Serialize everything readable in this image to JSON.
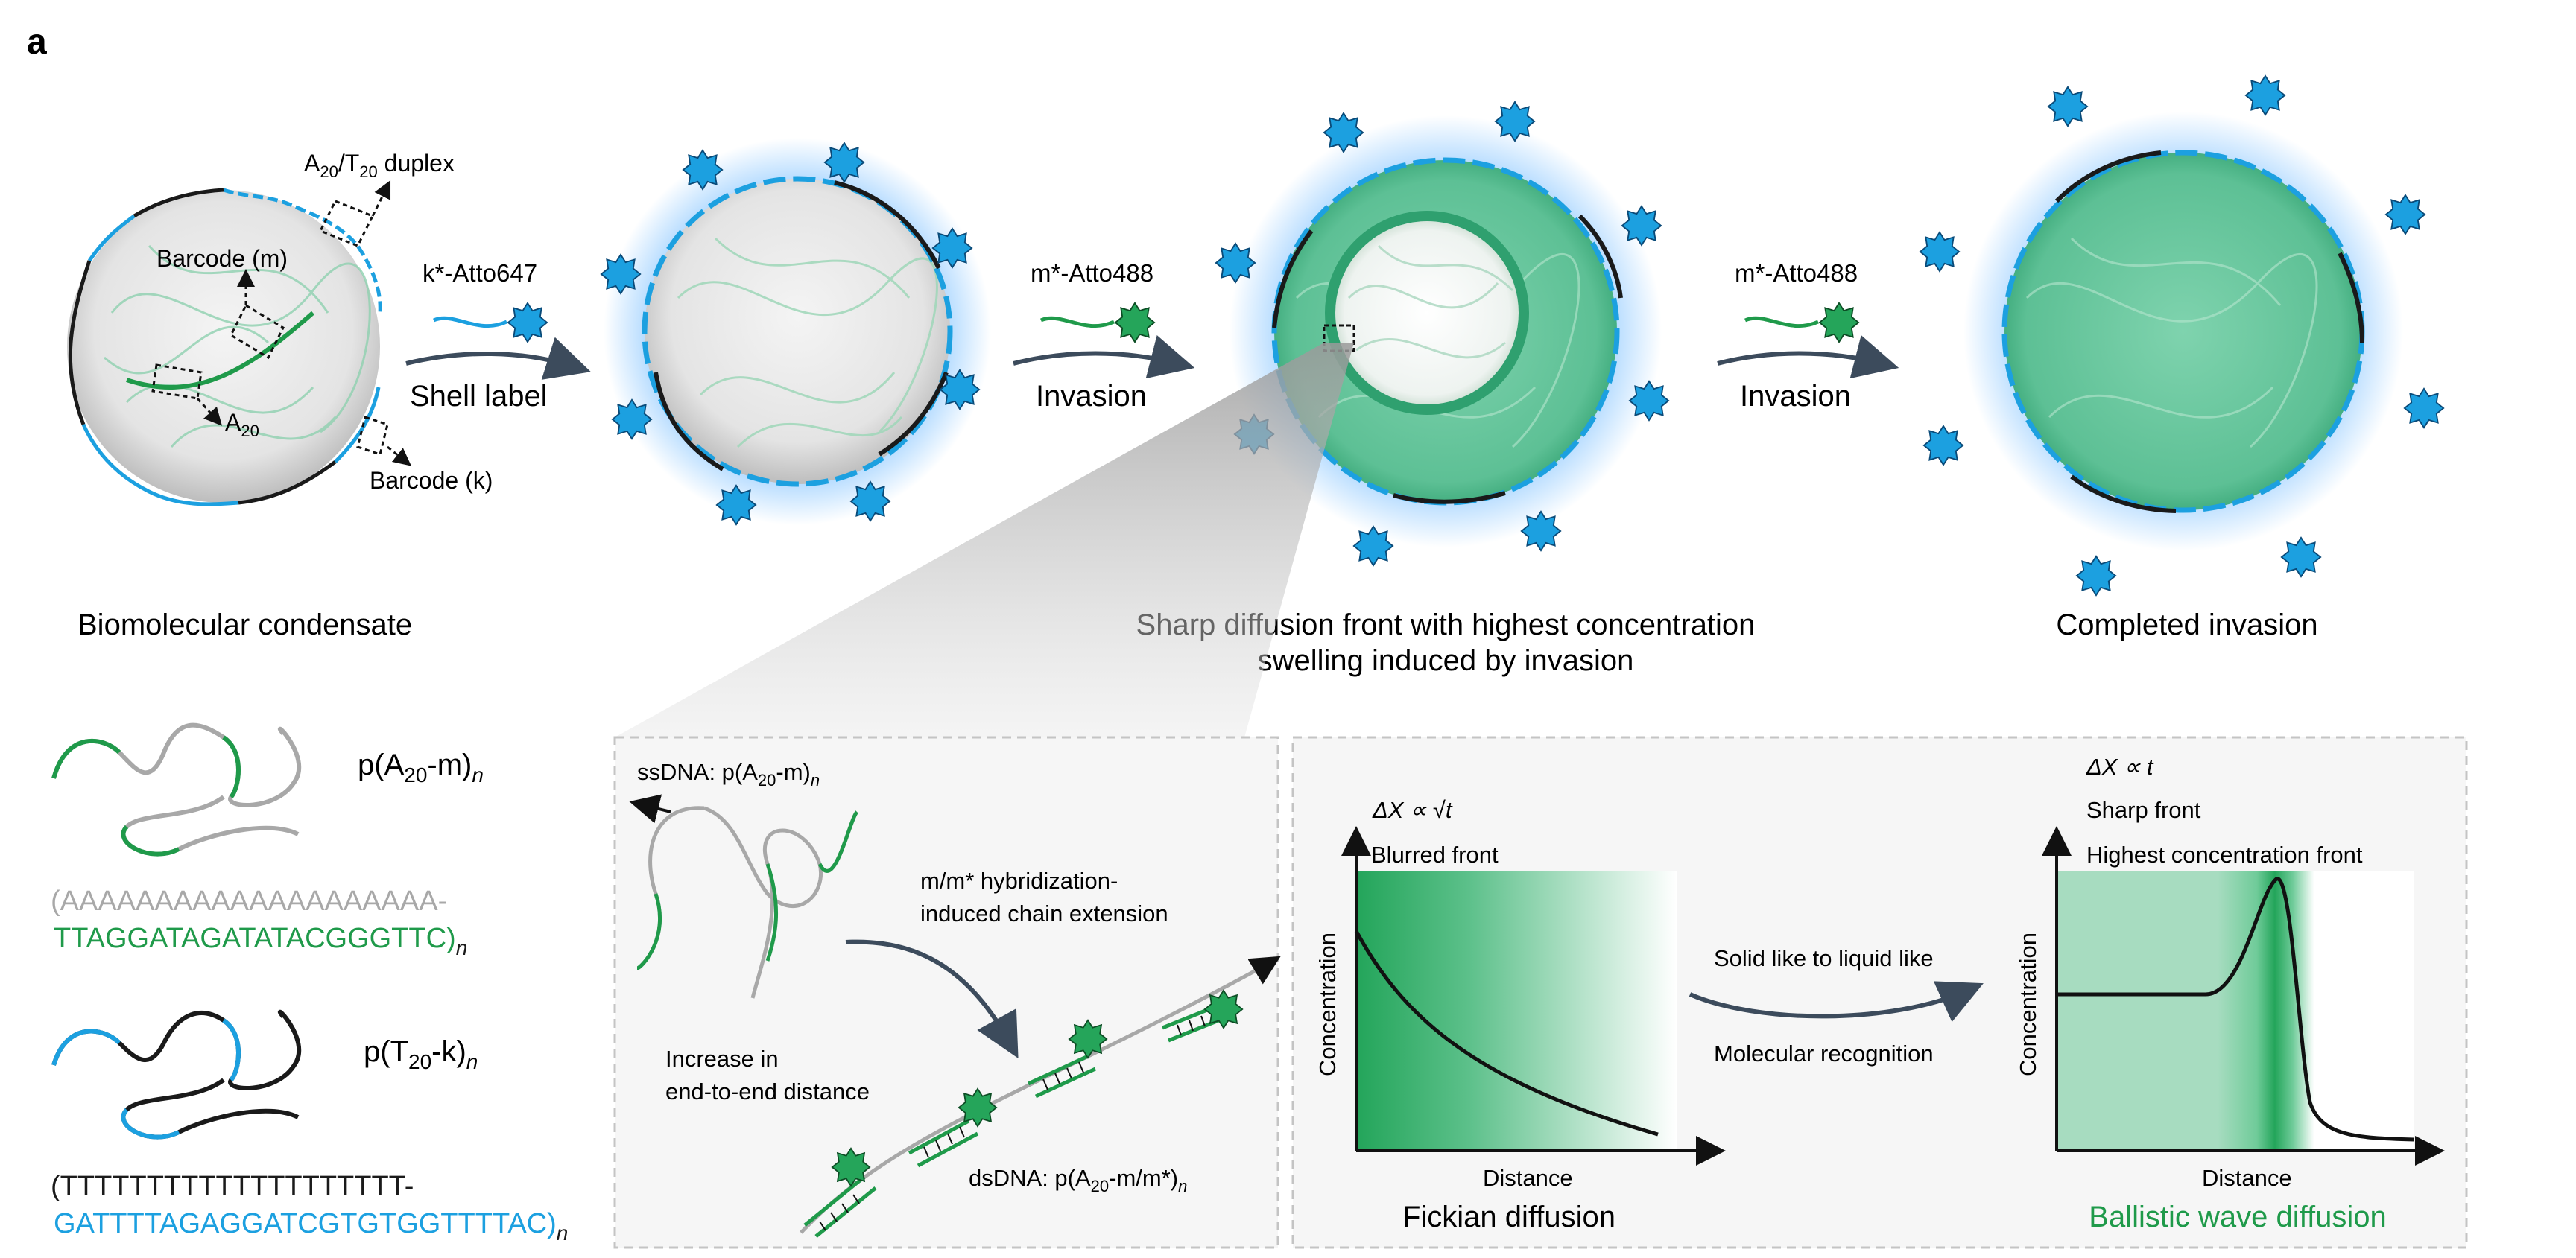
{
  "panel_letter": "a",
  "top": {
    "condensate": {
      "label": "Biomolecular condensate",
      "duplex_label_A": "A",
      "duplex_label_sub1": "20",
      "duplex_label_mid": "/T",
      "duplex_label_sub2": "20",
      "duplex_label_end": " duplex",
      "barcode_m": "Barcode (m)",
      "a20": "A",
      "a20_sub": "20",
      "barcode_k": "Barcode (k)"
    },
    "step1": {
      "probe": "k*-Atto647",
      "action": "Shell label"
    },
    "step2": {
      "probe": "m*-Atto488",
      "action": "Invasion"
    },
    "middle_label_line1": "Sharp diffusion front with highest concentration",
    "middle_label_line2": "swelling induced by invasion",
    "step3": {
      "probe": "m*-Atto488",
      "action": "Invasion"
    },
    "completed_label": "Completed invasion"
  },
  "bottom_left": {
    "polymer1": {
      "label_pre": "p(A",
      "label_sub": "20",
      "label_post": "-m)",
      "label_n": "n",
      "seq1": "(AAAAAAAAAAAAAAAAAAAA-",
      "seq2": "TTAGGATAGATATACGGGTTC)",
      "n": "n"
    },
    "polymer2": {
      "label_pre": "p(T",
      "label_sub": "20",
      "label_post": "-k)",
      "label_n": "n",
      "seq1": "(TTTTTTTTTTTTTTTTTTTT-",
      "seq2": "GATTTTAGAGGATCGTGTGGTTTTAC)",
      "n": "n"
    }
  },
  "hybridization_box": {
    "ssdna_pre": "ssDNA: p(A",
    "ssdna_sub": "20",
    "ssdna_post": "-m)",
    "ssdna_n": "n",
    "extension_line1": "m/m* hybridization-",
    "extension_line2": "induced chain extension",
    "increase_line1": "Increase in",
    "increase_line2": "end-to-end distance",
    "dsdna_pre": "dsDNA: p(A",
    "dsdna_sub": "20",
    "dsdna_post": "-m/m*)",
    "dsdna_n": "n"
  },
  "diffusion_box": {
    "fickian": {
      "scaling_pre": "ΔX ∝ ",
      "scaling_sqrt": "√t",
      "front": "Blurred front",
      "ylabel": "Concentration",
      "xlabel": "Distance",
      "title": "Fickian diffusion"
    },
    "transition": {
      "top": "Solid like to liquid like",
      "bottom": "Molecular recognition"
    },
    "ballistic": {
      "scaling": "ΔX ∝ t",
      "front1": "Sharp front",
      "front2": "Highest concentration front",
      "ylabel": "Concentration",
      "xlabel": "Distance",
      "title": "Ballistic wave diffusion"
    }
  },
  "colors": {
    "blue": "#1ca0e0",
    "green": "#1f9a4a",
    "dark": "#1a1a1a",
    "grey": "#a8a8a8",
    "arrow": "#3c4b5c"
  }
}
